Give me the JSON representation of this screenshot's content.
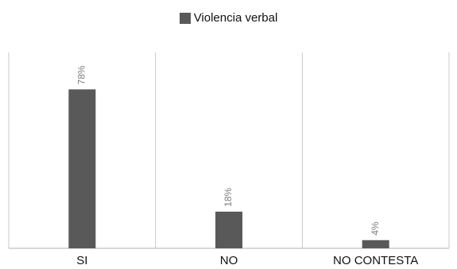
{
  "chart_data": {
    "type": "bar",
    "categories": [
      "SI",
      "NO",
      "NO CONTESTA"
    ],
    "series": [
      {
        "name": "Violencia verbal",
        "values": [
          78,
          18,
          4
        ],
        "data_labels": [
          "78%",
          "18%",
          "4%"
        ]
      }
    ],
    "ylim": [
      0,
      100
    ],
    "grid": false,
    "legend_position": "top-center"
  },
  "colors": {
    "bar": "#595959",
    "separator": "#c8c8c8",
    "axis": "#b0b0b0",
    "data_label": "#7f7f7f",
    "category_label": "#111111"
  }
}
